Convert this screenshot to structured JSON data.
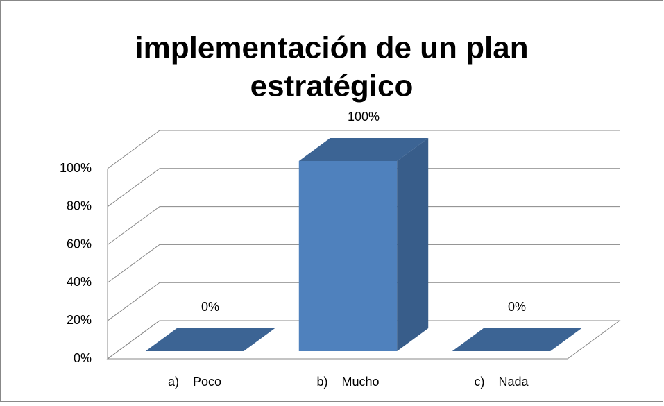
{
  "chart_data": {
    "type": "bar3d",
    "title": [
      "implementación de un plan",
      "estratégico"
    ],
    "categories": [
      "a)    Poco",
      "b)    Mucho",
      "c)    Nada"
    ],
    "values": [
      0,
      100,
      0
    ],
    "value_labels": [
      "0%",
      "100%",
      "0%"
    ],
    "color": "#4f81bd",
    "ylim": [
      0,
      100
    ],
    "yticks": [
      {
        "value": 0,
        "label": "0%"
      },
      {
        "value": 20,
        "label": "20%"
      },
      {
        "value": 40,
        "label": "40%"
      },
      {
        "value": 60,
        "label": "60%"
      },
      {
        "value": 80,
        "label": "80%"
      },
      {
        "value": 100,
        "label": "100%"
      }
    ],
    "grid": true
  }
}
